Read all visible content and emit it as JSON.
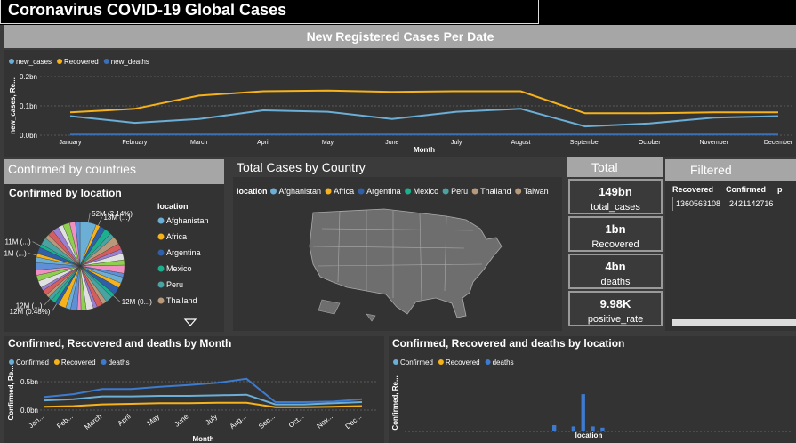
{
  "header": {
    "title": "Coronavirus COVID-19 Global Cases"
  },
  "banner": "New Registered Cases Per Date",
  "top_chart": {
    "type": "line",
    "y_label": "new_cases, Re...",
    "x_label": "Month",
    "categories": [
      "January",
      "February",
      "March",
      "April",
      "May",
      "June",
      "July",
      "August",
      "September",
      "October",
      "November",
      "December"
    ],
    "series": [
      {
        "name": "new_cases",
        "color": "#6baed6",
        "values": [
          0.065,
          0.042,
          0.055,
          0.085,
          0.08,
          0.055,
          0.08,
          0.09,
          0.03,
          0.04,
          0.06,
          0.065
        ]
      },
      {
        "name": "Recovered",
        "color": "#f5b21a",
        "values": [
          0.078,
          0.09,
          0.135,
          0.15,
          0.152,
          0.148,
          0.15,
          0.15,
          0.075,
          0.075,
          0.078,
          0.078
        ]
      },
      {
        "name": "new_deaths",
        "color": "#3d6fb6",
        "values": [
          0.002,
          0.002,
          0.002,
          0.002,
          0.002,
          0.002,
          0.002,
          0.002,
          0.002,
          0.002,
          0.002,
          0.002
        ]
      }
    ],
    "ylim": [
      0,
      0.2
    ],
    "yticks": [
      {
        "value": 0,
        "label": "0.0bn"
      },
      {
        "value": 0.1,
        "label": "0.1bn"
      },
      {
        "value": 0.2,
        "label": "0.2bn"
      }
    ],
    "grid": true
  },
  "countries": {
    "header": "Confirmed by countries",
    "title": "Confirmed by location",
    "legend_title": "location",
    "legend": [
      {
        "name": "Afghanistan",
        "color": "#6baed6"
      },
      {
        "name": "Africa",
        "color": "#f5b21a"
      },
      {
        "name": "Argentina",
        "color": "#2f5fa8"
      },
      {
        "name": "Mexico",
        "color": "#1bb08e"
      },
      {
        "name": "Peru",
        "color": "#4aa3a3"
      },
      {
        "name": "Thailand",
        "color": "#b89a7a"
      }
    ],
    "pie": {
      "type": "pie",
      "palette": [
        "#6baed6",
        "#f5b21a",
        "#2f5fa8",
        "#1bb08e",
        "#4aa3a3",
        "#b89a7a",
        "#d45d5d",
        "#9b7fd1",
        "#e0e0e0",
        "#8fcf4f",
        "#f08fc0",
        "#5f8fd6"
      ],
      "values": [
        52,
        13,
        18,
        22,
        15,
        25,
        19,
        14,
        21,
        17,
        26,
        12,
        20,
        16,
        24,
        12,
        22,
        15,
        19,
        12,
        23,
        17,
        12,
        21,
        16,
        25,
        12,
        14,
        12,
        11,
        17,
        11,
        22,
        19,
        16,
        24,
        18,
        11,
        21,
        11,
        23,
        14,
        19,
        20,
        16,
        22,
        18,
        15
      ],
      "value_labels": [
        "52M (2.14%)",
        "13M (...)",
        null,
        null,
        null,
        null,
        null,
        null,
        null,
        null,
        null,
        null,
        null,
        null,
        null,
        "12M (0...)",
        null,
        null,
        null,
        null,
        null,
        null,
        null,
        null,
        null,
        null,
        "12M (0.48%)",
        null,
        "12M (...)",
        null,
        null,
        null,
        null,
        null,
        null,
        null,
        null,
        "11M (...)",
        null,
        "11M (...)",
        null,
        null,
        null,
        null,
        null,
        null,
        null,
        null
      ]
    }
  },
  "map": {
    "title": "Total Cases by Country",
    "legend_title": "location",
    "legend": [
      {
        "name": "Afghanistan",
        "color": "#6baed6"
      },
      {
        "name": "Africa",
        "color": "#f5b21a"
      },
      {
        "name": "Argentina",
        "color": "#2f5fa8"
      },
      {
        "name": "Mexico",
        "color": "#1bb08e"
      },
      {
        "name": "Peru",
        "color": "#4aa3a3"
      },
      {
        "name": "Thailand",
        "color": "#b89a7a"
      },
      {
        "name": "Taiwan",
        "color": "#b89a7a"
      }
    ]
  },
  "totals": {
    "title": "Total",
    "cards": [
      {
        "value": "149bn",
        "label": "total_cases"
      },
      {
        "value": "1bn",
        "label": "Recovered"
      },
      {
        "value": "4bn",
        "label": "deaths"
      },
      {
        "value": "9.98K",
        "label": "positive_rate"
      }
    ]
  },
  "filtered": {
    "title": "Filtered",
    "columns": [
      "Recovered",
      "Confirmed",
      "p"
    ],
    "rows": [
      [
        "1360563108",
        "2421142716"
      ]
    ]
  },
  "month_chart": {
    "type": "line",
    "title": "Confirmed, Recovered and deaths by Month",
    "y_label": "Confirmed, Re...",
    "x_label": "Month",
    "categories": [
      "Jan...",
      "Feb...",
      "March",
      "April",
      "May",
      "June",
      "July",
      "Aug...",
      "Sep...",
      "Oct...",
      "Nov...",
      "Dec..."
    ],
    "series": [
      {
        "name": "Confirmed",
        "color": "#6baed6",
        "values": [
          0.17,
          0.19,
          0.24,
          0.24,
          0.25,
          0.25,
          0.26,
          0.27,
          0.1,
          0.1,
          0.12,
          0.14
        ]
      },
      {
        "name": "Recovered",
        "color": "#f5b21a",
        "values": [
          0.06,
          0.07,
          0.1,
          0.11,
          0.12,
          0.12,
          0.13,
          0.13,
          0.05,
          0.05,
          0.06,
          0.07
        ]
      },
      {
        "name": "deaths",
        "color": "#3d7bd0",
        "values": [
          0.23,
          0.28,
          0.37,
          0.37,
          0.41,
          0.44,
          0.48,
          0.55,
          0.14,
          0.14,
          0.15,
          0.19
        ]
      }
    ],
    "ylim": [
      0,
      0.6
    ],
    "yticks": [
      {
        "value": 0,
        "label": "0.0bn"
      },
      {
        "value": 0.5,
        "label": "0.5bn"
      }
    ],
    "grid": true
  },
  "location_chart": {
    "type": "bar",
    "title": "Confirmed, Recovered and deaths by location",
    "y_label": "Confirmed, Re...",
    "x_label": "location",
    "legend": [
      {
        "name": "Confirmed",
        "color": "#6baed6"
      },
      {
        "name": "Recovered",
        "color": "#f5b21a"
      },
      {
        "name": "deaths",
        "color": "#3d7bd0"
      }
    ],
    "color": "#3d7bd0",
    "categories": [
      null,
      null,
      null,
      null,
      null,
      null,
      null,
      null,
      null,
      null,
      null,
      null,
      null,
      null,
      null,
      null,
      null,
      null,
      null,
      null,
      null,
      null,
      null,
      null,
      null,
      null,
      null,
      null,
      null,
      null,
      null,
      null,
      null,
      null,
      null,
      null,
      null,
      null,
      null,
      null
    ],
    "values": [
      0.5,
      0.5,
      0.5,
      0.5,
      0.5,
      0.5,
      0.5,
      0.5,
      0.5,
      0.5,
      0.5,
      0.5,
      0.5,
      0.5,
      0.5,
      5,
      0.5,
      4,
      30,
      4,
      3,
      0.5,
      0.5,
      0.5,
      0.5,
      0.5,
      0.5,
      0.5,
      0.5,
      0.5,
      0.5,
      0.5,
      0.5,
      0.5,
      0.5,
      0.5,
      0.5,
      0.5,
      0.5,
      0.5
    ],
    "ylim": [
      0,
      48
    ]
  }
}
